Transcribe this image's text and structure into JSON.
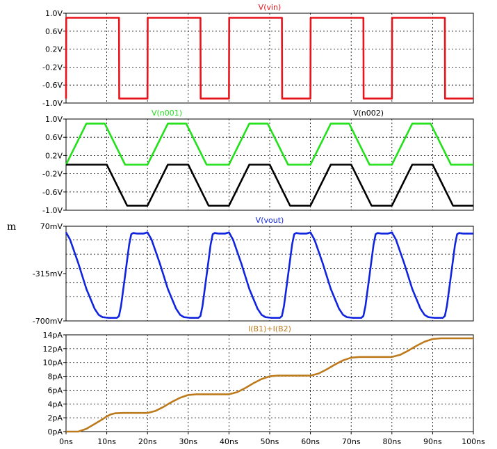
{
  "side_mark": "m",
  "x_ticks": [
    "0ns",
    "10ns",
    "20ns",
    "30ns",
    "40ns",
    "50ns",
    "60ns",
    "70ns",
    "80ns",
    "90ns",
    "100ns"
  ],
  "colors": {
    "red": "#e8141c",
    "green": "#22e01a",
    "black": "#000000",
    "blue": "#1024e0",
    "brown": "#bd7a1c",
    "grid": "#000000"
  },
  "chart_data": [
    {
      "type": "line",
      "xlim": [
        0,
        100
      ],
      "ylim": [
        -1.0,
        1.0
      ],
      "y_ticks": [
        "1.0V",
        "0.6V",
        "0.2V",
        "-0.2V",
        "-0.6V",
        "-1.0V"
      ],
      "y_tick_values": [
        1.0,
        0.6,
        0.2,
        -0.2,
        -0.6,
        -1.0
      ],
      "series": [
        {
          "name": "V(vin)",
          "color": "#e8141c",
          "x": [
            0,
            0.05,
            13,
            13.05,
            20,
            20.05,
            33,
            33.05,
            40,
            40.05,
            53,
            53.05,
            60,
            60.05,
            73,
            73.05,
            80,
            80.05,
            93,
            93.05,
            100
          ],
          "y": [
            -0.9,
            0.9,
            0.9,
            -0.9,
            -0.9,
            0.9,
            0.9,
            -0.9,
            -0.9,
            0.9,
            0.9,
            -0.9,
            -0.9,
            0.9,
            0.9,
            -0.9,
            -0.9,
            0.9,
            0.9,
            -0.9,
            -0.9
          ]
        }
      ]
    },
    {
      "type": "line",
      "xlim": [
        0,
        100
      ],
      "ylim": [
        -1.0,
        1.0
      ],
      "y_ticks": [
        "1.0V",
        "0.6V",
        "0.2V",
        "-0.2V",
        "-0.6V",
        "-1.0V"
      ],
      "y_tick_values": [
        1.0,
        0.6,
        0.2,
        -0.2,
        -0.6,
        -1.0
      ],
      "series": [
        {
          "name": "V(n001)",
          "color": "#22e01a",
          "x": [
            0,
            5,
            9.5,
            14.5,
            20,
            25,
            29.5,
            34.5,
            40,
            45,
            49.5,
            54.5,
            60,
            65,
            69.5,
            74.5,
            80,
            85,
            89.5,
            94.5,
            100
          ],
          "y": [
            0,
            0.9,
            0.9,
            0,
            0,
            0.9,
            0.9,
            0,
            0,
            0.9,
            0.9,
            0,
            0,
            0.9,
            0.9,
            0,
            0,
            0.9,
            0.9,
            0,
            0
          ]
        },
        {
          "name": "V(n002)",
          "color": "#000000",
          "x": [
            0,
            5,
            10,
            15,
            20,
            25,
            30,
            35,
            40,
            45,
            50,
            55,
            60,
            65,
            70,
            75,
            80,
            85,
            90,
            95,
            100
          ],
          "y": [
            0,
            0,
            0,
            -0.9,
            -0.9,
            0,
            0,
            -0.9,
            -0.9,
            0,
            0,
            -0.9,
            -0.9,
            0,
            0,
            -0.9,
            -0.9,
            0,
            0,
            -0.9,
            -0.9
          ]
        }
      ]
    },
    {
      "type": "line",
      "xlim": [
        0,
        100
      ],
      "ylim": [
        -700,
        70
      ],
      "y_ticks": [
        "70mV",
        "-315mV",
        "-700mV"
      ],
      "y_tick_values": [
        70,
        -315,
        -700
      ],
      "series": [
        {
          "name": "V(vout)",
          "color": "#1024e0",
          "x": [
            0,
            1,
            3,
            5,
            7,
            8,
            9,
            10.5,
            11.5,
            12.5,
            13,
            13.5,
            14.5,
            15.5,
            16,
            16.5,
            17.5,
            19,
            20,
            21,
            23,
            25,
            27,
            28,
            29,
            30.5,
            31.5,
            32.5,
            33,
            33.5,
            34.5,
            35.5,
            36,
            36.5,
            37.5,
            39,
            40,
            41,
            43,
            45,
            47,
            48,
            49,
            50.5,
            51.5,
            52.5,
            53,
            53.5,
            54.5,
            55.5,
            56,
            56.5,
            57.5,
            59,
            60,
            61,
            63,
            65,
            67,
            68,
            69,
            70.5,
            71.5,
            72.5,
            73,
            73.5,
            74.5,
            75.5,
            76,
            76.5,
            77.5,
            79,
            80,
            81,
            83,
            85,
            87,
            88,
            89,
            90.5,
            91.5,
            92.5,
            93,
            93.5,
            94.5,
            95.5,
            96,
            96.5,
            97.5,
            100
          ],
          "y": [
            20,
            -40,
            -230,
            -440,
            -600,
            -650,
            -670,
            -675,
            -675,
            -675,
            -660,
            -580,
            -330,
            -80,
            5,
            15,
            10,
            10,
            20,
            -40,
            -230,
            -440,
            -600,
            -650,
            -670,
            -675,
            -675,
            -675,
            -660,
            -580,
            -330,
            -80,
            5,
            15,
            10,
            10,
            20,
            -40,
            -230,
            -440,
            -600,
            -650,
            -670,
            -675,
            -675,
            -675,
            -660,
            -580,
            -330,
            -80,
            5,
            15,
            10,
            10,
            20,
            -40,
            -230,
            -440,
            -600,
            -650,
            -670,
            -675,
            -675,
            -675,
            -660,
            -580,
            -330,
            -80,
            5,
            15,
            10,
            10,
            20,
            -40,
            -230,
            -440,
            -600,
            -650,
            -670,
            -675,
            -675,
            -675,
            -660,
            -580,
            -330,
            -80,
            5,
            15,
            10,
            10
          ]
        }
      ]
    },
    {
      "type": "line",
      "xlim": [
        0,
        100
      ],
      "ylim": [
        0,
        14
      ],
      "y_ticks": [
        "14pA",
        "12pA",
        "10pA",
        "8pA",
        "6pA",
        "4pA",
        "2pA",
        "0pA"
      ],
      "y_tick_values": [
        14,
        12,
        10,
        8,
        6,
        4,
        2,
        0
      ],
      "series": [
        {
          "name": "I(B1)+I(B2)",
          "color": "#bd7a1c",
          "x": [
            0,
            3,
            5,
            7,
            9,
            10,
            11,
            12,
            14,
            20,
            22,
            24,
            26,
            28,
            30,
            32,
            34,
            40,
            42,
            44,
            46,
            48,
            50,
            52,
            54,
            60,
            62,
            64,
            66,
            68,
            70,
            72,
            74,
            80,
            82,
            84,
            86,
            88,
            90,
            92,
            94,
            100
          ],
          "y": [
            0,
            0,
            0.4,
            1.1,
            1.8,
            2.2,
            2.5,
            2.65,
            2.7,
            2.7,
            3.0,
            3.6,
            4.3,
            4.9,
            5.3,
            5.4,
            5.4,
            5.4,
            5.7,
            6.3,
            7.0,
            7.6,
            8.0,
            8.1,
            8.1,
            8.1,
            8.4,
            9.0,
            9.7,
            10.3,
            10.7,
            10.8,
            10.8,
            10.8,
            11.1,
            11.7,
            12.4,
            13.0,
            13.4,
            13.5,
            13.5,
            13.5
          ]
        }
      ]
    }
  ]
}
